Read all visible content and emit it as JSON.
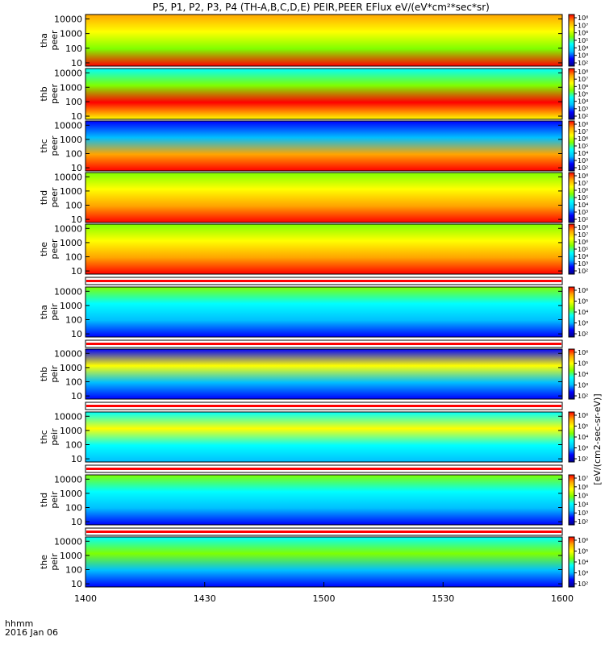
{
  "chart_data": {
    "type": "heatmap",
    "title": "P5, P1, P2, P3, P4 (TH-A,B,C,D,E) PEIR,PEER EFlux eV/(eV*cm²*sec*sr)",
    "x_tick_labels": [
      "1400",
      "1430",
      "1500",
      "1530",
      "1600"
    ],
    "x_label_line1": "hhmm",
    "x_label_line2": "2016 Jan 06",
    "y_tick_labels": [
      "10",
      "100",
      "1000",
      "10000"
    ],
    "y_scale": "log",
    "ylim": [
      6,
      20000
    ],
    "colorbar_label": "[eV/(cm2-sec-sr-eV)]",
    "colorscale": [
      "#00008b",
      "#0000ff",
      "#00bfff",
      "#00ffff",
      "#7fff00",
      "#ffff00",
      "#ffa500",
      "#ff0000"
    ],
    "panels": [
      {
        "label1": "tha",
        "label2": "peer",
        "cbar_ticks": [
          "10²",
          "10³",
          "10⁴",
          "10⁵",
          "10⁶",
          "10⁷",
          "10⁸"
        ]
      },
      {
        "label1": "thb",
        "label2": "peer",
        "cbar_ticks": [
          "10²",
          "10³",
          "10⁴",
          "10⁵",
          "10⁶",
          "10⁷",
          "10⁸"
        ]
      },
      {
        "label1": "thc",
        "label2": "peer",
        "cbar_ticks": [
          "10²",
          "10³",
          "10⁴",
          "10⁵",
          "10⁶",
          "10⁷",
          "10⁸"
        ]
      },
      {
        "label1": "thd",
        "label2": "peer",
        "cbar_ticks": [
          "10²",
          "10³",
          "10⁴",
          "10⁵",
          "10⁶",
          "10⁷",
          "10⁸"
        ]
      },
      {
        "label1": "the",
        "label2": "peer",
        "cbar_ticks": [
          "10²",
          "10³",
          "10⁴",
          "10⁵",
          "10⁶",
          "10⁷",
          "10⁸"
        ]
      },
      {
        "label1": "tha",
        "label2": "peir",
        "cbar_ticks": [
          "10²",
          "10³",
          "10⁴",
          "10⁵",
          "10⁶"
        ]
      },
      {
        "label1": "thb",
        "label2": "peir",
        "cbar_ticks": [
          "10²",
          "10³",
          "10⁴",
          "10⁵",
          "10⁶"
        ]
      },
      {
        "label1": "thc",
        "label2": "peir",
        "cbar_ticks": [
          "10²",
          "10³",
          "10⁴",
          "10⁵",
          "10⁶"
        ]
      },
      {
        "label1": "thd",
        "label2": "peir",
        "cbar_ticks": [
          "10²",
          "10³",
          "10⁴",
          "10⁵",
          "10⁶",
          "10⁷"
        ]
      },
      {
        "label1": "the",
        "label2": "peir",
        "cbar_ticks": [
          "10²",
          "10³",
          "10⁴",
          "10⁵",
          "10⁶"
        ]
      }
    ]
  }
}
